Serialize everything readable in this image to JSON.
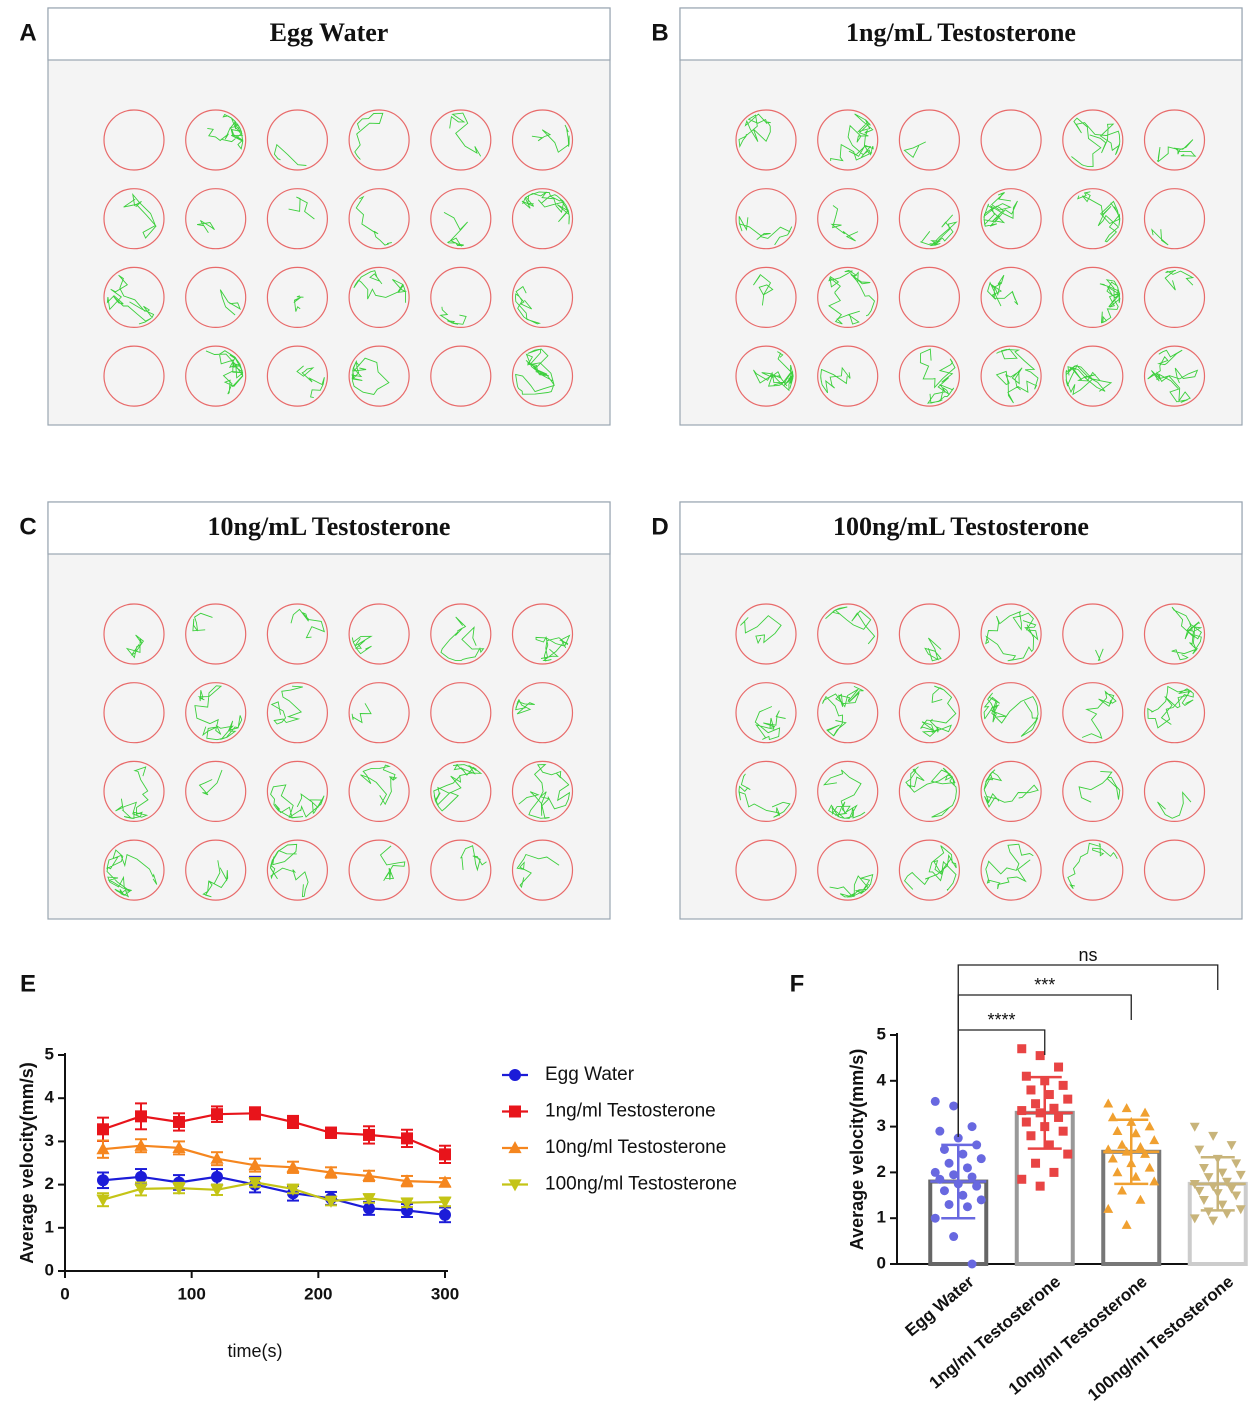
{
  "panels": [
    {
      "label": "A",
      "title": "Egg Water"
    },
    {
      "label": "B",
      "title": "1ng/mL Testosterone"
    },
    {
      "label": "C",
      "title": "10ng/mL Testosterone"
    },
    {
      "label": "D",
      "title": "100ng/mL Testosterone"
    }
  ],
  "chart_data": [
    {
      "type": "line",
      "panel": "E",
      "x_label": "time(s)",
      "y_label": "Average velocity(mm/s)",
      "x": [
        30,
        60,
        90,
        120,
        150,
        180,
        210,
        240,
        270,
        300
      ],
      "xlim": [
        0,
        300
      ],
      "xticks": [
        0,
        100,
        200,
        300
      ],
      "ylim": [
        0,
        5
      ],
      "yticks": [
        0,
        1,
        2,
        3,
        4,
        5
      ],
      "series": [
        {
          "name": "Egg Water",
          "color": "#1c1cd8",
          "marker": "circle",
          "values": [
            2.1,
            2.18,
            2.05,
            2.18,
            2.0,
            1.8,
            1.68,
            1.45,
            1.4,
            1.3
          ],
          "errors": [
            0.18,
            0.18,
            0.17,
            0.18,
            0.18,
            0.17,
            0.15,
            0.15,
            0.15,
            0.17
          ]
        },
        {
          "name": "1ng/ml Testosterone",
          "color": "#e8141b",
          "marker": "square",
          "values": [
            3.28,
            3.58,
            3.45,
            3.63,
            3.65,
            3.45,
            3.2,
            3.15,
            3.07,
            2.7
          ],
          "errors": [
            0.27,
            0.3,
            0.2,
            0.18,
            0.14,
            0.14,
            0.12,
            0.2,
            0.2,
            0.2
          ]
        },
        {
          "name": "10ng/ml Testosterone",
          "color": "#f5861f",
          "marker": "triangle",
          "values": [
            2.82,
            2.9,
            2.85,
            2.6,
            2.45,
            2.4,
            2.28,
            2.2,
            2.08,
            2.05
          ],
          "errors": [
            0.2,
            0.15,
            0.15,
            0.15,
            0.15,
            0.13,
            0.12,
            0.12,
            0.12,
            0.1
          ]
        },
        {
          "name": "100ng/ml Testosterone",
          "color": "#c4c416",
          "marker": "triangle-down",
          "values": [
            1.65,
            1.9,
            1.92,
            1.88,
            2.05,
            1.9,
            1.62,
            1.68,
            1.58,
            1.6
          ],
          "errors": [
            0.15,
            0.15,
            0.12,
            0.12,
            0.1,
            0.1,
            0.1,
            0.1,
            0.1,
            0.1
          ]
        }
      ]
    },
    {
      "type": "bar",
      "panel": "F",
      "y_label": "Average velocity(mm/s)",
      "categories": [
        "Egg Water",
        "1ng/ml Testosterone",
        "10ng/ml Testosterone",
        "100ng/ml Testosterone"
      ],
      "values": [
        1.8,
        3.3,
        2.45,
        1.75
      ],
      "errors": [
        0.8,
        0.78,
        0.7,
        0.58
      ],
      "bar_colors": [
        "#666666",
        "#999999",
        "#777777",
        "#cccccc"
      ],
      "point_colors": [
        "#6868e0",
        "#e84444",
        "#f0a030",
        "#c8b47a"
      ],
      "markers": [
        "circle",
        "square",
        "triangle",
        "triangle-down"
      ],
      "points": [
        [
          3.55,
          3.45,
          3.0,
          2.9,
          2.75,
          2.6,
          2.5,
          2.4,
          2.3,
          2.2,
          2.1,
          2.0,
          1.95,
          1.9,
          1.85,
          1.75,
          1.7,
          1.6,
          1.5,
          1.4,
          1.3,
          1.25,
          1.0,
          0.6,
          0.0
        ],
        [
          4.7,
          4.55,
          4.3,
          4.1,
          4.0,
          3.9,
          3.8,
          3.7,
          3.6,
          3.5,
          3.4,
          3.35,
          3.3,
          3.2,
          3.1,
          3.0,
          2.9,
          2.8,
          2.6,
          2.4,
          2.2,
          2.0,
          1.85,
          1.7
        ],
        [
          3.5,
          3.4,
          3.3,
          3.2,
          3.1,
          3.0,
          2.9,
          2.85,
          2.7,
          2.6,
          2.55,
          2.5,
          2.45,
          2.4,
          2.3,
          2.2,
          2.1,
          2.0,
          1.9,
          1.8,
          1.6,
          1.4,
          1.2,
          0.85
        ],
        [
          3.0,
          2.8,
          2.6,
          2.5,
          2.3,
          2.2,
          2.1,
          2.0,
          1.95,
          1.9,
          1.8,
          1.75,
          1.7,
          1.65,
          1.6,
          1.55,
          1.5,
          1.4,
          1.3,
          1.2,
          1.15,
          1.1,
          1.0,
          0.95
        ]
      ],
      "ylim": [
        0,
        5
      ],
      "yticks": [
        0,
        1,
        2,
        3,
        4,
        5
      ],
      "comparisons": [
        {
          "pair": [
            0,
            1
          ],
          "label": "****"
        },
        {
          "pair": [
            0,
            2
          ],
          "label": "***"
        },
        {
          "pair": [
            0,
            3
          ],
          "label": "ns"
        }
      ]
    }
  ]
}
